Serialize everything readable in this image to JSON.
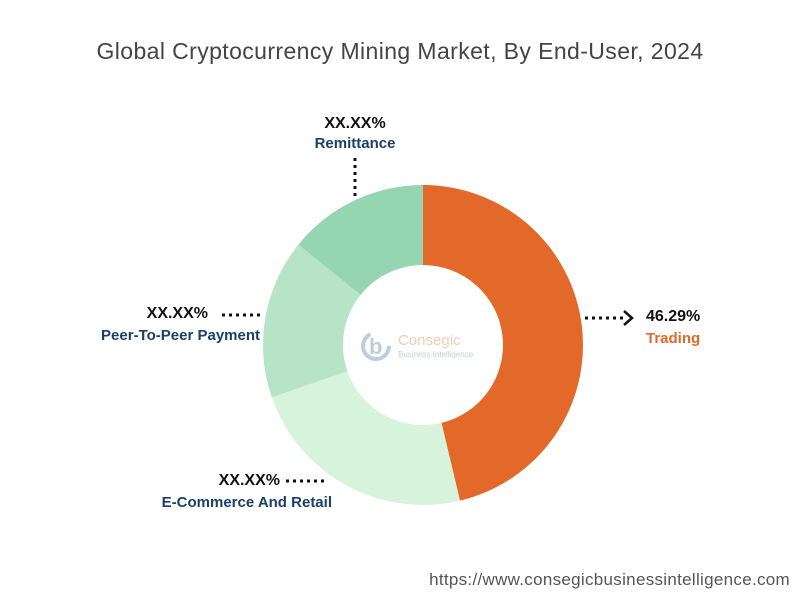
{
  "chart_data": {
    "type": "pie",
    "subtype": "donut",
    "title": "Global Cryptocurrency Mining Market, By End-User, 2024",
    "categories": [
      "Trading",
      "E-Commerce And Retail",
      "Peer-To-Peer Payment",
      "Remittance"
    ],
    "values": [
      46.29,
      23.4,
      16.1,
      14.21
    ],
    "labels": [
      "46.29%",
      "XX.XX%",
      "XX.XX%",
      "XX.XX%"
    ],
    "colors": [
      "#E2692A",
      "#D8F3DC",
      "#B7E4C7",
      "#95D5B2"
    ],
    "label_colors": {
      "Trading": "#E2692A",
      "others": "#1B3F6B"
    },
    "start_angle": "12 o'clock, clockwise"
  },
  "logo": {
    "text1": "Consegic",
    "text2": "Business Intelligence"
  },
  "footer": "https://www.consegicbusinessintelligence.com"
}
